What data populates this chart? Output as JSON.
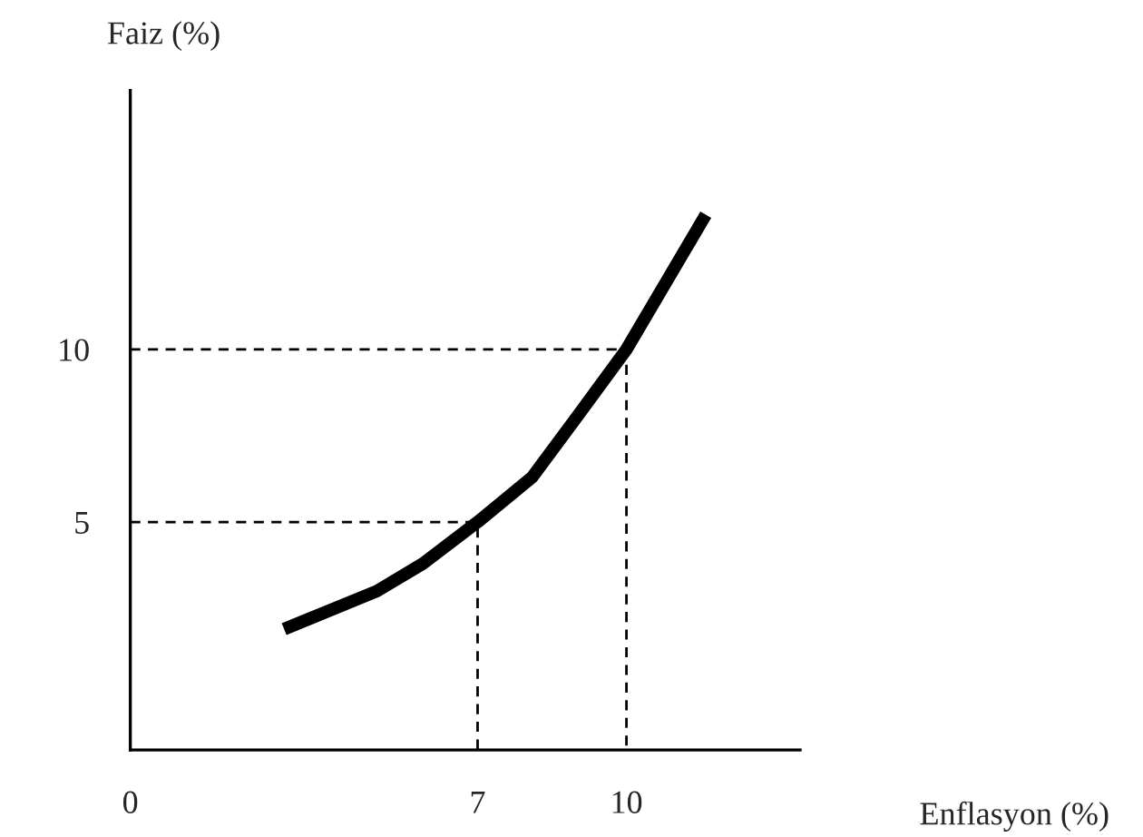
{
  "chart_data": {
    "type": "line",
    "xlabel": "Enflasyon (%)",
    "ylabel": "Faiz (%)",
    "xlim": [
      0,
      13.5
    ],
    "ylim": [
      -1.6,
      17.5
    ],
    "xticks": [
      0,
      7,
      10
    ],
    "yticks": [
      5,
      10
    ],
    "grid": false,
    "series": [
      {
        "color": "#000000",
        "x": [
          3.1,
          4.97,
          5.9,
          7,
          8.1,
          9.03,
          10,
          11.6
        ],
        "values": [
          1.9,
          3.0,
          3.8,
          5,
          6.3,
          8.1,
          10,
          13.9
        ],
        "line_style": "solid"
      },
      {
        "color": "#000000",
        "x": [
          0,
          7,
          7
        ],
        "values": [
          5,
          5,
          -1.6
        ],
        "line_style": "dashed"
      },
      {
        "color": "#000000",
        "x": [
          0,
          10,
          10
        ],
        "values": [
          10,
          10,
          -1.6
        ],
        "line_style": "dashed"
      }
    ]
  }
}
